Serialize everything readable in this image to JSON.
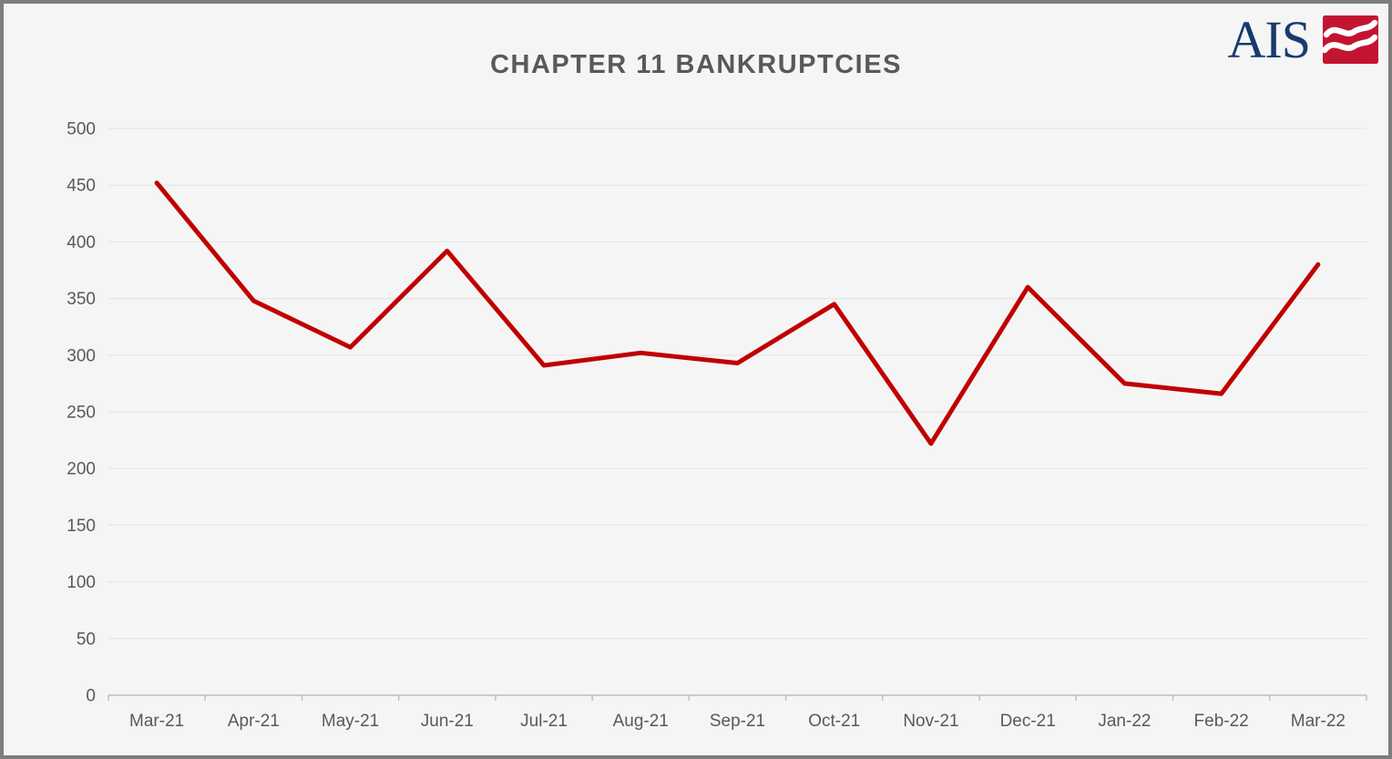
{
  "window": {
    "background_color": "#f5f5f5",
    "border_color": "#7d7d7d"
  },
  "header": {
    "title": "CHAPTER 11 BANKRUPTCIES",
    "title_color": "#595959",
    "logo": {
      "text": "AIS",
      "text_color": "#173a6d",
      "mark": "double-wave-icon",
      "mark_color": "#c31432",
      "wave_color": "#ffffff"
    }
  },
  "chart_data": {
    "type": "line",
    "title": "CHAPTER 11 BANKRUPTCIES",
    "categories": [
      "Mar-21",
      "Apr-21",
      "May-21",
      "Jun-21",
      "Jul-21",
      "Aug-21",
      "Sep-21",
      "Oct-21",
      "Nov-21",
      "Dec-21",
      "Jan-22",
      "Feb-22",
      "Mar-22"
    ],
    "series": [
      {
        "name": "Chapter 11 Bankruptcies",
        "color": "#c00000",
        "values": [
          452,
          348,
          307,
          392,
          291,
          302,
          293,
          345,
          222,
          360,
          275,
          266,
          380
        ]
      }
    ],
    "xlabel": "",
    "ylabel": "",
    "ylim": [
      0,
      500
    ],
    "ytick_step": 50,
    "yticks": [
      0,
      50,
      100,
      150,
      200,
      250,
      300,
      350,
      400,
      450,
      500
    ],
    "grid": "horizontal",
    "legend": "none",
    "style": {
      "axis_text_color": "#595959",
      "gridline_color": "#e3e3e3",
      "axis_line_color": "#bfbfbf",
      "line_width": 5
    }
  }
}
